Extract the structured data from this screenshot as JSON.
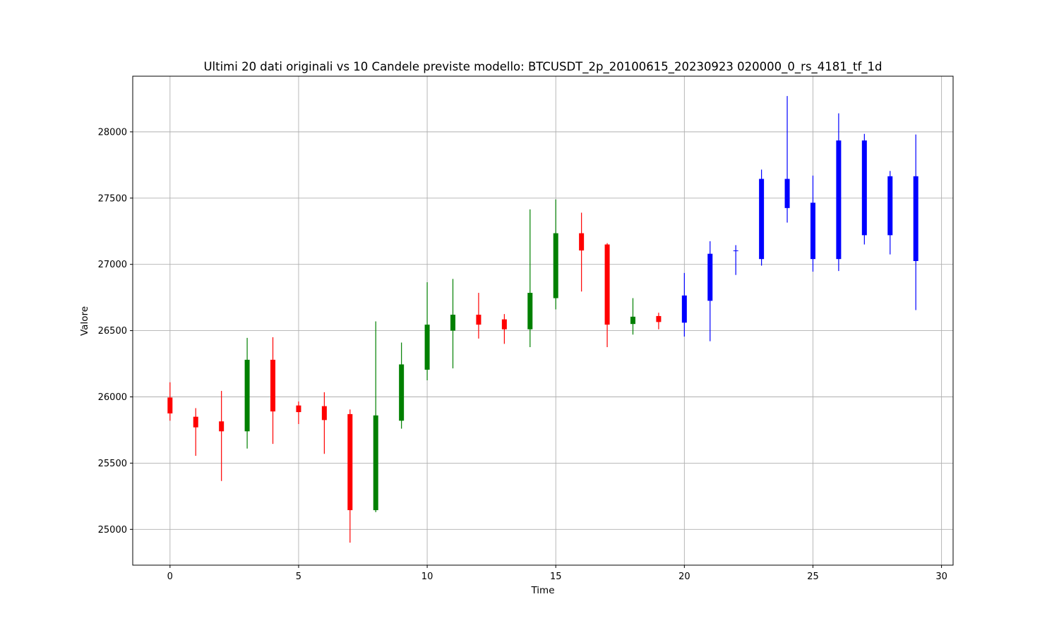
{
  "chart_data": {
    "type": "candlestick",
    "title": "Ultimi 20 dati originali vs 10 Candele previste modello: BTCUSDT_2p_20100615_20230923 020000_0_rs_4181_tf_1d",
    "xlabel": "Time",
    "ylabel": "Valore",
    "xlim": [
      -1.45,
      30.45
    ],
    "ylim": [
      24730,
      28420
    ],
    "x_ticks": [
      0,
      5,
      10,
      15,
      20,
      25,
      30
    ],
    "x_tick_labels": [
      "0",
      "5",
      "10",
      "15",
      "20",
      "25",
      "30"
    ],
    "y_ticks": [
      25000,
      25500,
      26000,
      26500,
      27000,
      27500,
      28000
    ],
    "y_tick_labels": [
      "25000",
      "25500",
      "26000",
      "26500",
      "27000",
      "27500",
      "28000"
    ],
    "grid": true,
    "colors": {
      "up": "#008000",
      "down": "#ff0000",
      "predicted": "#0000ff",
      "grid": "#b0b0b0",
      "axes": "#000000"
    },
    "series": [
      {
        "candles": [
          {
            "x": 0,
            "open": 25995,
            "high": 26110,
            "low": 25820,
            "close": 25875
          },
          {
            "x": 1,
            "open": 25850,
            "high": 25915,
            "low": 25555,
            "close": 25770
          },
          {
            "x": 2,
            "open": 25815,
            "high": 26045,
            "low": 25365,
            "close": 25740
          },
          {
            "x": 3,
            "open": 25740,
            "high": 26445,
            "low": 25610,
            "close": 26280
          },
          {
            "x": 4,
            "open": 26280,
            "high": 26450,
            "low": 25645,
            "close": 25890
          },
          {
            "x": 5,
            "open": 25935,
            "high": 25965,
            "low": 25795,
            "close": 25885
          },
          {
            "x": 6,
            "open": 25930,
            "high": 26035,
            "low": 25570,
            "close": 25825
          },
          {
            "x": 7,
            "open": 25870,
            "high": 25905,
            "low": 24900,
            "close": 25145
          },
          {
            "x": 8,
            "open": 25145,
            "high": 26570,
            "low": 25130,
            "close": 25860
          },
          {
            "x": 9,
            "open": 25820,
            "high": 26410,
            "low": 25760,
            "close": 26245
          },
          {
            "x": 10,
            "open": 26205,
            "high": 26865,
            "low": 26125,
            "close": 26545
          },
          {
            "x": 11,
            "open": 26500,
            "high": 26890,
            "low": 26215,
            "close": 26620
          },
          {
            "x": 12,
            "open": 26620,
            "high": 26785,
            "low": 26440,
            "close": 26545
          },
          {
            "x": 13,
            "open": 26585,
            "high": 26625,
            "low": 26400,
            "close": 26510
          },
          {
            "x": 14,
            "open": 26510,
            "high": 27415,
            "low": 26375,
            "close": 26785
          },
          {
            "x": 15,
            "open": 26745,
            "high": 27490,
            "low": 26660,
            "close": 27235
          },
          {
            "x": 16,
            "open": 27235,
            "high": 27390,
            "low": 26795,
            "close": 27105
          },
          {
            "x": 17,
            "open": 27150,
            "high": 27160,
            "low": 26375,
            "close": 26545
          },
          {
            "x": 18,
            "open": 26550,
            "high": 26745,
            "low": 26470,
            "close": 26605
          },
          {
            "x": 19,
            "open": 26610,
            "high": 26635,
            "low": 26510,
            "close": 26565
          }
        ]
      },
      {
        "candles": [
          {
            "x": 20,
            "open": 26560,
            "high": 26935,
            "low": 26455,
            "close": 26765
          },
          {
            "x": 21,
            "open": 26725,
            "high": 27175,
            "low": 26420,
            "close": 27080
          },
          {
            "x": 22,
            "open": 27105,
            "high": 27145,
            "low": 26920,
            "close": 27105
          },
          {
            "x": 23,
            "open": 27040,
            "high": 27715,
            "low": 26990,
            "close": 27645
          },
          {
            "x": 24,
            "open": 27425,
            "high": 28270,
            "low": 27315,
            "close": 27645
          },
          {
            "x": 25,
            "open": 27040,
            "high": 27670,
            "low": 26945,
            "close": 27465
          },
          {
            "x": 26,
            "open": 27040,
            "high": 28140,
            "low": 26950,
            "close": 27935
          },
          {
            "x": 27,
            "open": 27220,
            "high": 27985,
            "low": 27150,
            "close": 27935
          },
          {
            "x": 28,
            "open": 27220,
            "high": 27705,
            "low": 27075,
            "close": 27665
          },
          {
            "x": 29,
            "open": 27025,
            "high": 27980,
            "low": 26655,
            "close": 27665
          }
        ]
      }
    ]
  }
}
